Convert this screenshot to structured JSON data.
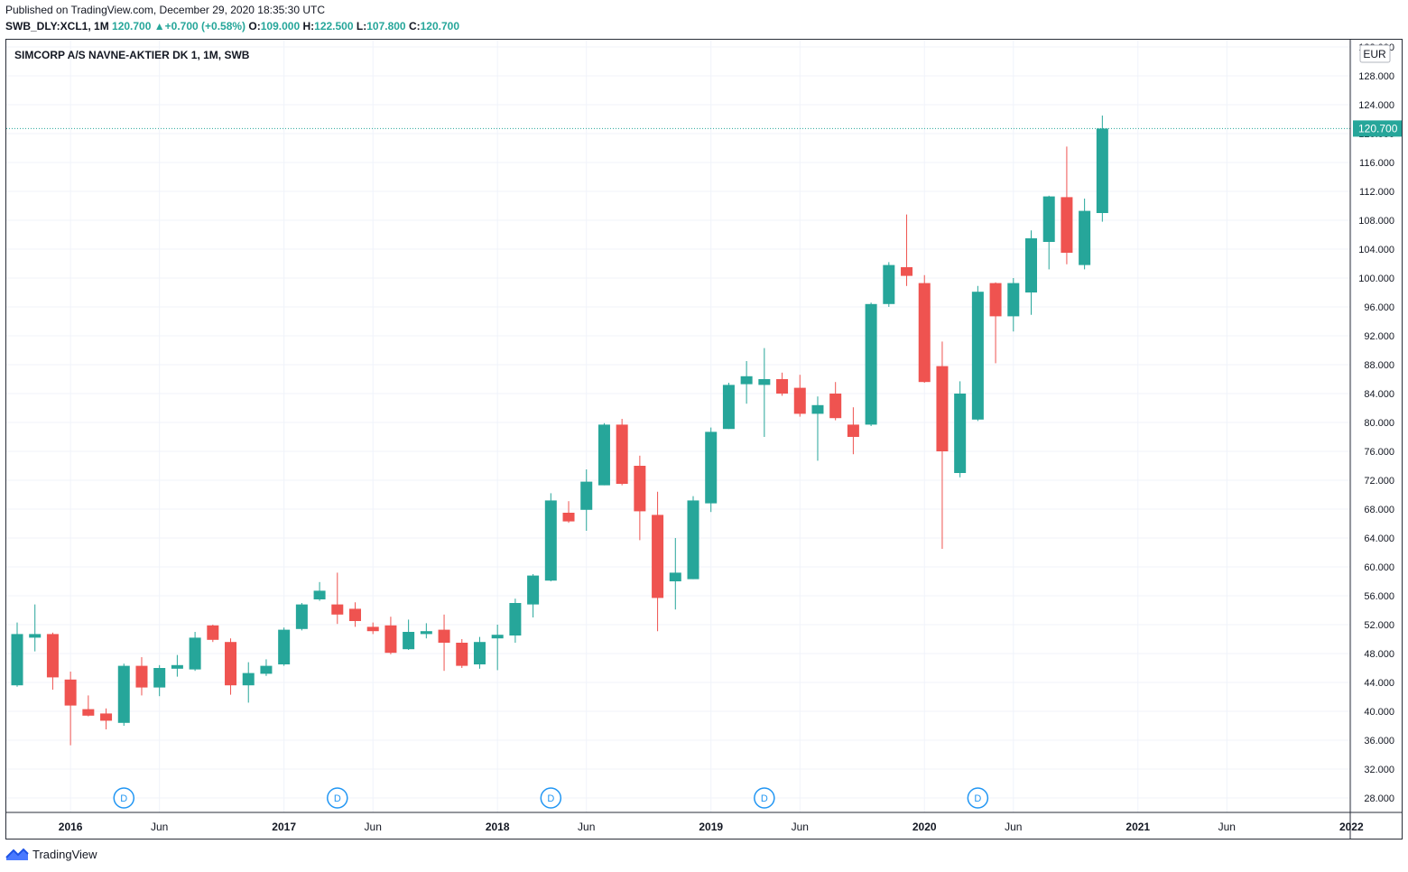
{
  "header": {
    "published": "Published on TradingView.com, December 29, 2020 18:35:30 UTC",
    "symbol": "SWB_DLY:XCL1, 1M",
    "last": "120.700",
    "change": "+0.700 (+0.58%)",
    "o_label": "O:",
    "o": "109.000",
    "h_label": "H:",
    "h": "122.500",
    "l_label": "L:",
    "l": "107.800",
    "c_label": "C:",
    "c": "120.700"
  },
  "footer": {
    "brand": "TradingView"
  },
  "colors": {
    "up": "#26a69a",
    "down": "#ef5350",
    "grid": "#f0f3fa",
    "text": "#131722",
    "marker": "#2196f3"
  },
  "chart_data": {
    "type": "candlestick",
    "title": "SIMCORP A/S NAVNE-AKTIER DK 1, 1M, SWB",
    "currency": "EUR",
    "last_price_label": "120.700",
    "ylim": [
      26,
      133
    ],
    "y_ticks": [
      "28.000",
      "32.000",
      "36.000",
      "40.000",
      "44.000",
      "48.000",
      "52.000",
      "56.000",
      "60.000",
      "64.000",
      "68.000",
      "72.000",
      "76.000",
      "80.000",
      "84.000",
      "88.000",
      "92.000",
      "96.000",
      "100.000",
      "104.000",
      "108.000",
      "112.000",
      "116.000",
      "120.000",
      "124.000",
      "128.000",
      "132.000"
    ],
    "x_ticks": [
      {
        "label": "2016",
        "m": 12,
        "bold": true
      },
      {
        "label": "Jun",
        "m": 17,
        "bold": false
      },
      {
        "label": "2017",
        "m": 24,
        "bold": true
      },
      {
        "label": "Jun",
        "m": 29,
        "bold": false
      },
      {
        "label": "2018",
        "m": 36,
        "bold": true
      },
      {
        "label": "Jun",
        "m": 41,
        "bold": false
      },
      {
        "label": "2019",
        "m": 48,
        "bold": true
      },
      {
        "label": "Jun",
        "m": 53,
        "bold": false
      },
      {
        "label": "2020",
        "m": 60,
        "bold": true
      },
      {
        "label": "Jun",
        "m": 65,
        "bold": false
      },
      {
        "label": "2021",
        "m": 72,
        "bold": true
      },
      {
        "label": "Jun",
        "m": 77,
        "bold": false
      },
      {
        "label": "2022",
        "m": 84,
        "bold": true
      }
    ],
    "dividend_markers": [
      {
        "label": "D",
        "m": 15
      },
      {
        "label": "D",
        "m": 27
      },
      {
        "label": "D",
        "m": 39
      },
      {
        "label": "D",
        "m": 51
      },
      {
        "label": "D",
        "m": 63
      }
    ],
    "candles": [
      {
        "m": 9,
        "o": 43.6,
        "h": 52.3,
        "l": 43.4,
        "c": 50.7
      },
      {
        "m": 10,
        "o": 50.2,
        "h": 54.8,
        "l": 48.3,
        "c": 50.7
      },
      {
        "m": 11,
        "o": 50.7,
        "h": 50.9,
        "l": 43.0,
        "c": 44.7
      },
      {
        "m": 12,
        "o": 44.4,
        "h": 45.5,
        "l": 35.3,
        "c": 40.8
      },
      {
        "m": 13,
        "o": 40.3,
        "h": 42.2,
        "l": 39.3,
        "c": 39.4
      },
      {
        "m": 14,
        "o": 39.7,
        "h": 40.4,
        "l": 37.5,
        "c": 38.7
      },
      {
        "m": 15,
        "o": 38.4,
        "h": 46.6,
        "l": 38.0,
        "c": 46.3
      },
      {
        "m": 16,
        "o": 46.3,
        "h": 47.5,
        "l": 42.2,
        "c": 43.3
      },
      {
        "m": 17,
        "o": 43.3,
        "h": 46.4,
        "l": 42.1,
        "c": 46.0
      },
      {
        "m": 18,
        "o": 45.9,
        "h": 47.8,
        "l": 44.8,
        "c": 46.4
      },
      {
        "m": 19,
        "o": 45.8,
        "h": 51.0,
        "l": 45.6,
        "c": 50.2
      },
      {
        "m": 20,
        "o": 51.9,
        "h": 52.0,
        "l": 49.6,
        "c": 49.9
      },
      {
        "m": 21,
        "o": 49.6,
        "h": 50.1,
        "l": 42.3,
        "c": 43.6
      },
      {
        "m": 22,
        "o": 43.6,
        "h": 46.8,
        "l": 41.2,
        "c": 45.3
      },
      {
        "m": 23,
        "o": 45.2,
        "h": 47.2,
        "l": 44.9,
        "c": 46.3
      },
      {
        "m": 24,
        "o": 46.5,
        "h": 51.6,
        "l": 46.3,
        "c": 51.3
      },
      {
        "m": 25,
        "o": 51.4,
        "h": 55.0,
        "l": 51.2,
        "c": 54.8
      },
      {
        "m": 26,
        "o": 55.5,
        "h": 57.9,
        "l": 55.3,
        "c": 56.7
      },
      {
        "m": 27,
        "o": 54.8,
        "h": 59.2,
        "l": 52.1,
        "c": 53.4
      },
      {
        "m": 28,
        "o": 54.2,
        "h": 55.1,
        "l": 51.7,
        "c": 52.5
      },
      {
        "m": 29,
        "o": 51.7,
        "h": 52.3,
        "l": 50.7,
        "c": 51.1
      },
      {
        "m": 30,
        "o": 51.9,
        "h": 53.1,
        "l": 47.9,
        "c": 48.1
      },
      {
        "m": 31,
        "o": 48.6,
        "h": 52.7,
        "l": 48.5,
        "c": 51.0
      },
      {
        "m": 32,
        "o": 50.7,
        "h": 52.2,
        "l": 50.1,
        "c": 51.1
      },
      {
        "m": 33,
        "o": 51.3,
        "h": 53.4,
        "l": 45.6,
        "c": 49.5
      },
      {
        "m": 34,
        "o": 49.5,
        "h": 50.0,
        "l": 46.0,
        "c": 46.3
      },
      {
        "m": 35,
        "o": 46.5,
        "h": 50.3,
        "l": 45.9,
        "c": 49.6
      },
      {
        "m": 36,
        "o": 50.1,
        "h": 52.0,
        "l": 45.7,
        "c": 50.6
      },
      {
        "m": 37,
        "o": 50.5,
        "h": 55.6,
        "l": 49.5,
        "c": 55.0
      },
      {
        "m": 38,
        "o": 54.8,
        "h": 59.0,
        "l": 53.0,
        "c": 58.8
      },
      {
        "m": 39,
        "o": 58.1,
        "h": 70.2,
        "l": 58.0,
        "c": 69.2
      },
      {
        "m": 40,
        "o": 67.5,
        "h": 69.1,
        "l": 66.1,
        "c": 66.3
      },
      {
        "m": 41,
        "o": 67.9,
        "h": 73.5,
        "l": 65.0,
        "c": 71.8
      },
      {
        "m": 42,
        "o": 71.3,
        "h": 79.9,
        "l": 71.3,
        "c": 79.7
      },
      {
        "m": 43,
        "o": 79.7,
        "h": 80.5,
        "l": 71.3,
        "c": 71.5
      },
      {
        "m": 44,
        "o": 74.0,
        "h": 75.4,
        "l": 63.7,
        "c": 67.7
      },
      {
        "m": 45,
        "o": 67.2,
        "h": 70.4,
        "l": 51.1,
        "c": 55.7
      },
      {
        "m": 46,
        "o": 58.0,
        "h": 64.0,
        "l": 54.1,
        "c": 59.2
      },
      {
        "m": 47,
        "o": 58.3,
        "h": 69.8,
        "l": 58.3,
        "c": 69.2
      },
      {
        "m": 48,
        "o": 68.8,
        "h": 79.3,
        "l": 67.6,
        "c": 78.7
      },
      {
        "m": 49,
        "o": 79.1,
        "h": 85.5,
        "l": 79.1,
        "c": 85.2
      },
      {
        "m": 50,
        "o": 85.3,
        "h": 88.5,
        "l": 82.6,
        "c": 86.4
      },
      {
        "m": 51,
        "o": 85.2,
        "h": 90.3,
        "l": 78.0,
        "c": 86.0
      },
      {
        "m": 52,
        "o": 86.0,
        "h": 86.9,
        "l": 83.7,
        "c": 84.0
      },
      {
        "m": 53,
        "o": 84.8,
        "h": 86.6,
        "l": 80.8,
        "c": 81.2
      },
      {
        "m": 54,
        "o": 81.2,
        "h": 83.6,
        "l": 74.7,
        "c": 82.4
      },
      {
        "m": 55,
        "o": 84.0,
        "h": 85.6,
        "l": 80.3,
        "c": 80.6
      },
      {
        "m": 56,
        "o": 79.7,
        "h": 82.1,
        "l": 75.6,
        "c": 78.0
      },
      {
        "m": 57,
        "o": 79.7,
        "h": 96.6,
        "l": 79.5,
        "c": 96.4
      },
      {
        "m": 58,
        "o": 96.4,
        "h": 102.2,
        "l": 96.0,
        "c": 101.8
      },
      {
        "m": 59,
        "o": 101.5,
        "h": 108.8,
        "l": 98.9,
        "c": 100.3
      },
      {
        "m": 60,
        "o": 99.3,
        "h": 100.4,
        "l": 85.5,
        "c": 85.6
      },
      {
        "m": 61,
        "o": 87.8,
        "h": 91.2,
        "l": 62.5,
        "c": 76.0
      },
      {
        "m": 62,
        "o": 73.0,
        "h": 85.7,
        "l": 72.4,
        "c": 84.0
      },
      {
        "m": 63,
        "o": 80.4,
        "h": 98.9,
        "l": 80.2,
        "c": 98.1
      },
      {
        "m": 64,
        "o": 99.3,
        "h": 99.4,
        "l": 88.2,
        "c": 94.7
      },
      {
        "m": 65,
        "o": 94.7,
        "h": 100.0,
        "l": 92.6,
        "c": 99.3
      },
      {
        "m": 66,
        "o": 98.0,
        "h": 106.6,
        "l": 94.9,
        "c": 105.5
      },
      {
        "m": 67,
        "o": 105.0,
        "h": 111.4,
        "l": 101.2,
        "c": 111.3
      },
      {
        "m": 68,
        "o": 111.2,
        "h": 118.2,
        "l": 101.9,
        "c": 103.5
      },
      {
        "m": 69,
        "o": 101.8,
        "h": 111.0,
        "l": 101.2,
        "c": 109.3
      },
      {
        "m": 70,
        "o": 109.0,
        "h": 122.5,
        "l": 107.8,
        "c": 120.7
      }
    ]
  }
}
